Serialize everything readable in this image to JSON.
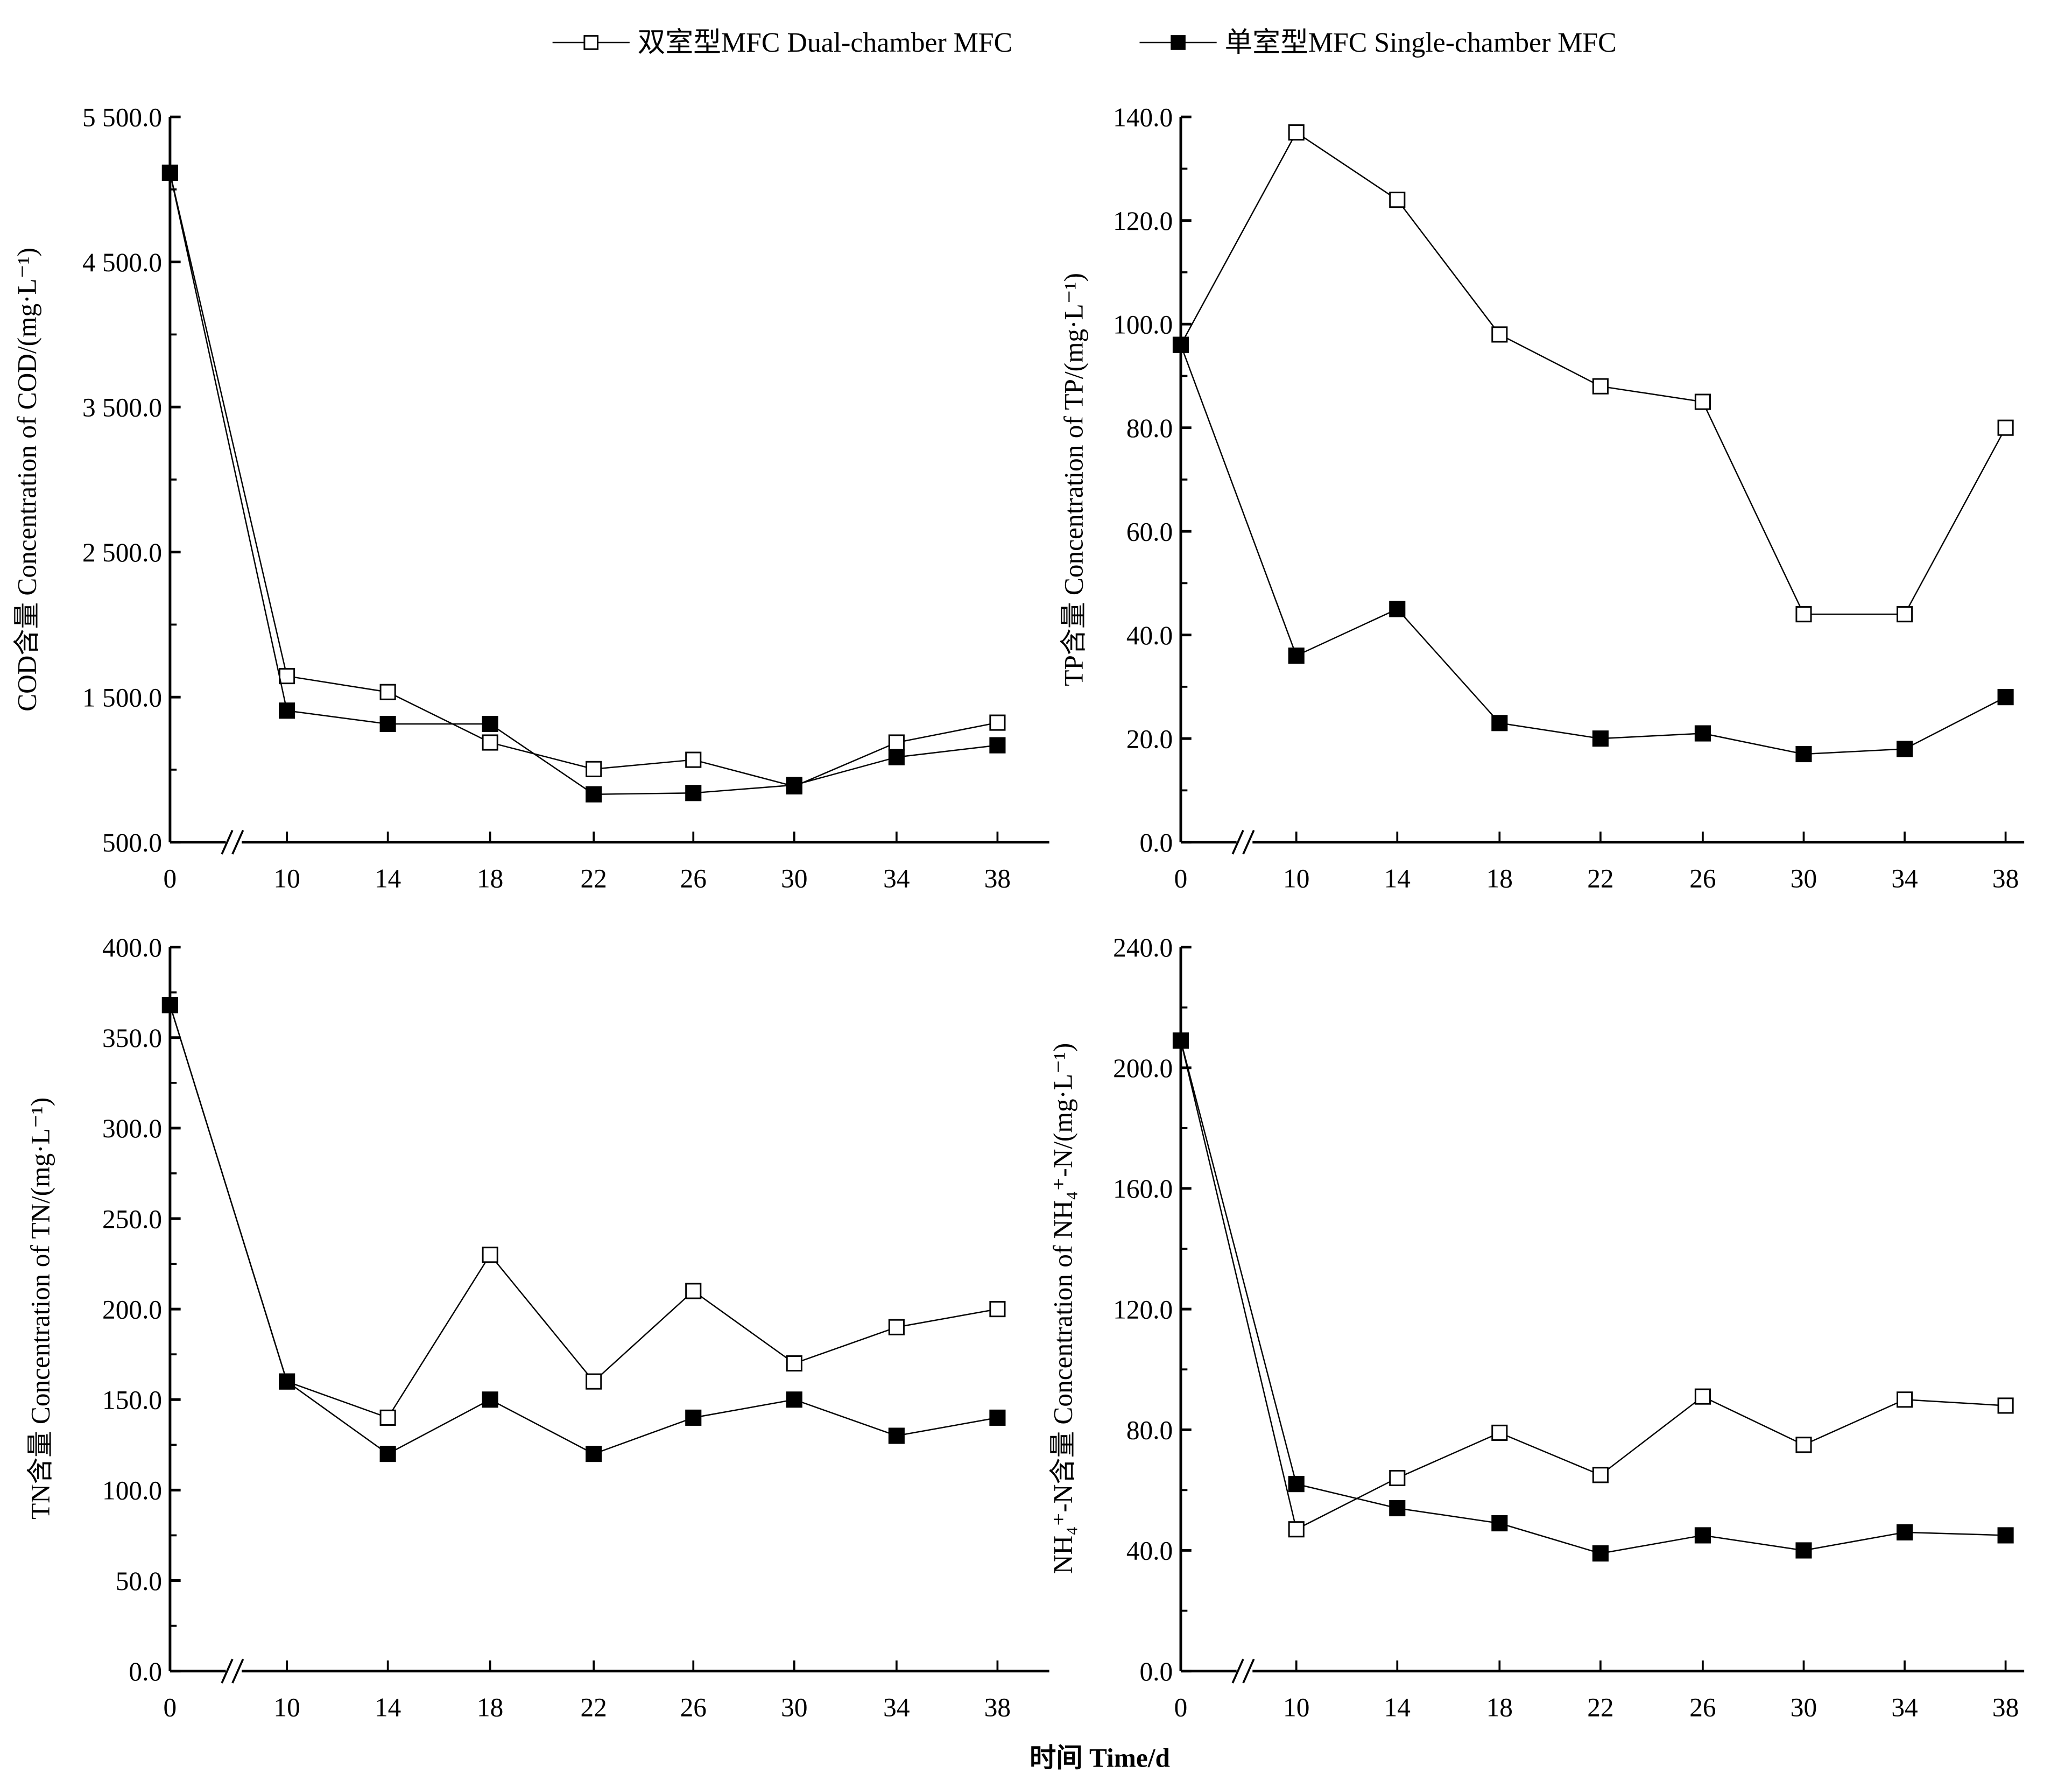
{
  "legend": {
    "dual_label": "双室型MFC Dual-chamber MFC",
    "single_label": "单室型MFC Single-chamber MFC"
  },
  "xlabel": "时间 Time/d",
  "chart_data": [
    {
      "type": "line",
      "id": "cod",
      "ylabel": "COD含量 Concentration of COD/(mg·L⁻¹)",
      "x": [
        0,
        10,
        14,
        18,
        22,
        26,
        30,
        34,
        38
      ],
      "x_tick_labels": [
        "0",
        "10",
        "14",
        "18",
        "22",
        "26",
        "30",
        "34",
        "38"
      ],
      "ylim": [
        500,
        5500
      ],
      "y_ticks": [
        500,
        1500,
        2500,
        3500,
        4500,
        5500
      ],
      "y_tick_labels": [
        "500.0",
        "1 500.0",
        "2 500.0",
        "3 500.0",
        "4 500.0",
        "5 500.0"
      ],
      "axis_break": "between 0 and 10",
      "series": [
        {
          "name": "双室型MFC Dual-chamber MFC",
          "marker": "open-square",
          "values": [
            5115,
            1645,
            1535,
            1187,
            1004,
            1068,
            885,
            1187,
            1324
          ]
        },
        {
          "name": "单室型MFC Single-chamber MFC",
          "marker": "filled-square",
          "values": [
            5115,
            1407,
            1315,
            1315,
            830,
            839,
            894,
            1086,
            1168
          ]
        }
      ]
    },
    {
      "type": "line",
      "id": "tp",
      "ylabel": "TP含量 Concentration of TP/(mg·L⁻¹)",
      "x": [
        0,
        10,
        14,
        18,
        22,
        26,
        30,
        34,
        38
      ],
      "x_tick_labels": [
        "0",
        "10",
        "14",
        "18",
        "22",
        "26",
        "30",
        "34",
        "38"
      ],
      "ylim": [
        0,
        140
      ],
      "y_ticks": [
        0,
        20,
        40,
        60,
        80,
        100,
        120,
        140
      ],
      "y_tick_labels": [
        "0.0",
        "20.0",
        "40.0",
        "60.0",
        "80.0",
        "100.0",
        "120.0",
        "140.0"
      ],
      "axis_break": "between 0 and 10",
      "series": [
        {
          "name": "双室型MFC Dual-chamber MFC",
          "marker": "open-square",
          "values": [
            96,
            137,
            124,
            98,
            88,
            85,
            44,
            44,
            80
          ]
        },
        {
          "name": "单室型MFC Single-chamber MFC",
          "marker": "filled-square",
          "values": [
            96,
            36,
            45,
            23,
            20,
            21,
            17,
            18,
            28
          ]
        }
      ]
    },
    {
      "type": "line",
      "id": "tn",
      "ylabel": "TN含量 Concentration of TN/(mg·L⁻¹)",
      "x": [
        0,
        10,
        14,
        18,
        22,
        26,
        30,
        34,
        38
      ],
      "x_tick_labels": [
        "0",
        "10",
        "14",
        "18",
        "22",
        "26",
        "30",
        "34",
        "38"
      ],
      "ylim": [
        0,
        400
      ],
      "y_ticks": [
        0,
        50,
        100,
        150,
        200,
        250,
        300,
        350,
        400
      ],
      "y_tick_labels": [
        "0.0",
        "50.0",
        "100.0",
        "150.0",
        "200.0",
        "250.0",
        "300.0",
        "350.0",
        "400.0"
      ],
      "axis_break": "between 0 and 10",
      "series": [
        {
          "name": "双室型MFC Dual-chamber MFC",
          "marker": "open-square",
          "values": [
            368,
            160,
            140,
            230,
            160,
            210,
            170,
            190,
            200
          ]
        },
        {
          "name": "单室型MFC Single-chamber MFC",
          "marker": "filled-square",
          "values": [
            368,
            160,
            120,
            150,
            120,
            140,
            150,
            130,
            140
          ]
        }
      ]
    },
    {
      "type": "line",
      "id": "nh4",
      "ylabel": "NH₄⁺-N含量 Concentration of NH₄⁺-N/(mg·L⁻¹)",
      "x": [
        0,
        10,
        14,
        18,
        22,
        26,
        30,
        34,
        38
      ],
      "x_tick_labels": [
        "0",
        "10",
        "14",
        "18",
        "22",
        "26",
        "30",
        "34",
        "38"
      ],
      "ylim": [
        0,
        240
      ],
      "y_ticks": [
        0,
        40,
        80,
        120,
        160,
        200,
        240
      ],
      "y_tick_labels": [
        "0.0",
        "40.0",
        "80.0",
        "120.0",
        "160.0",
        "200.0",
        "240.0"
      ],
      "axis_break": "between 0 and 10",
      "series": [
        {
          "name": "双室型MFC Dual-chamber MFC",
          "marker": "open-square",
          "values": [
            209,
            47,
            64,
            79,
            65,
            91,
            75,
            90,
            88
          ]
        },
        {
          "name": "单室型MFC Single-chamber MFC",
          "marker": "filled-square",
          "values": [
            209,
            62,
            54,
            49,
            39,
            45,
            40,
            46,
            45
          ]
        }
      ]
    }
  ]
}
